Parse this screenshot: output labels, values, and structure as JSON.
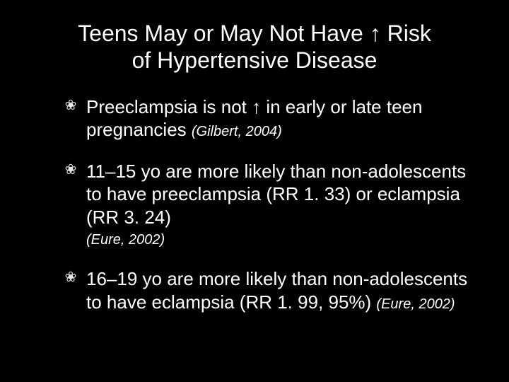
{
  "slide": {
    "background_color": "#000000",
    "text_color": "#ffffff",
    "title_fontsize": 32,
    "body_fontsize": 26,
    "citation_fontsize": 20,
    "title": {
      "line1_pre": "Teens May or May Not Have ",
      "arrow": "↑",
      "line1_post": " Risk",
      "line2": "of Hypertensive Disease"
    },
    "bullets": [
      {
        "text_pre": "Preeclampsia is not ",
        "arrow": "↑",
        "text_post": " in early or late teen pregnancies ",
        "citation_inline": "(Gilbert, 2004)"
      },
      {
        "text": "11–15 yo are more likely than non-adolescents to have preeclampsia (RR 1. 33) or eclampsia (RR 3. 24)",
        "citation_block": "(Eure, 2002)"
      },
      {
        "text": "16–19 yo are more likely than non-adolescents to have eclampsia (RR 1. 99, 95%) ",
        "citation_inline": "(Eure, 2002)"
      }
    ],
    "bullet_glyph": "❀"
  }
}
